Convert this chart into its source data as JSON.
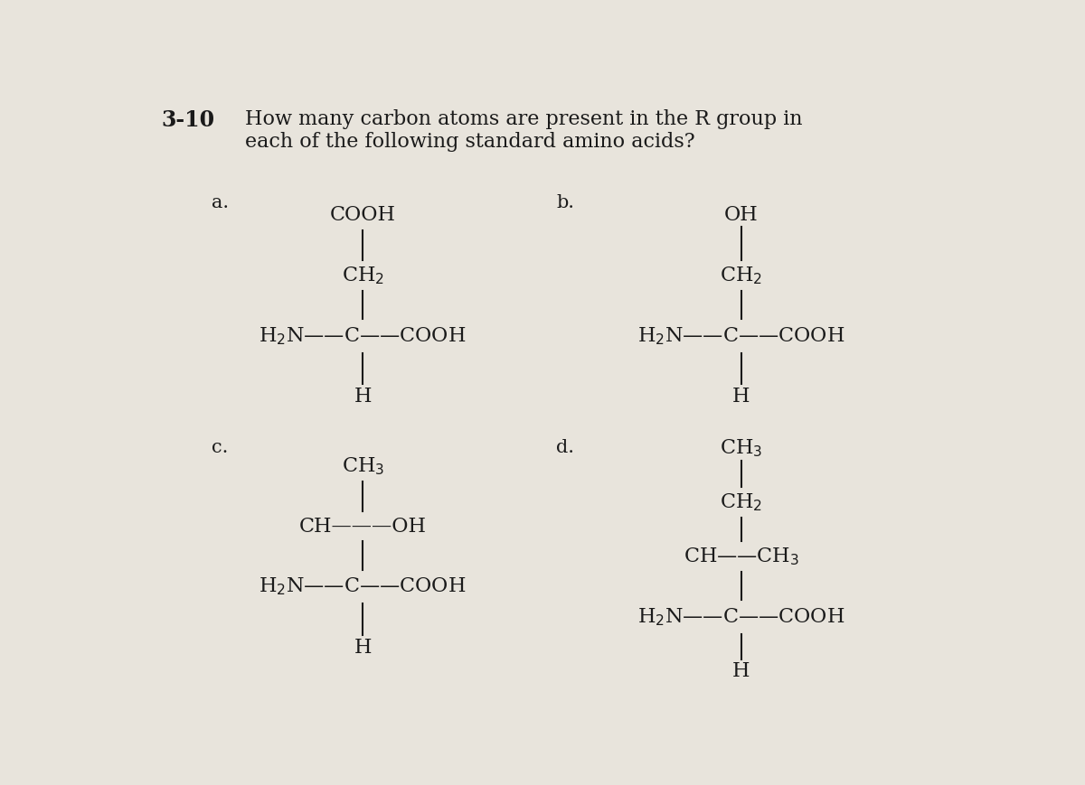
{
  "background_color": "#e8e4dc",
  "text_color": "#1a1a1a",
  "title_number": "3-10",
  "title_text": "How many carbon atoms are present in the R group in\neach of the following standard amino acids?",
  "label_a": "a.",
  "label_b": "b.",
  "label_c": "c.",
  "label_d": "d.",
  "fig_width": 12.0,
  "fig_height": 8.69,
  "dpi": 100
}
